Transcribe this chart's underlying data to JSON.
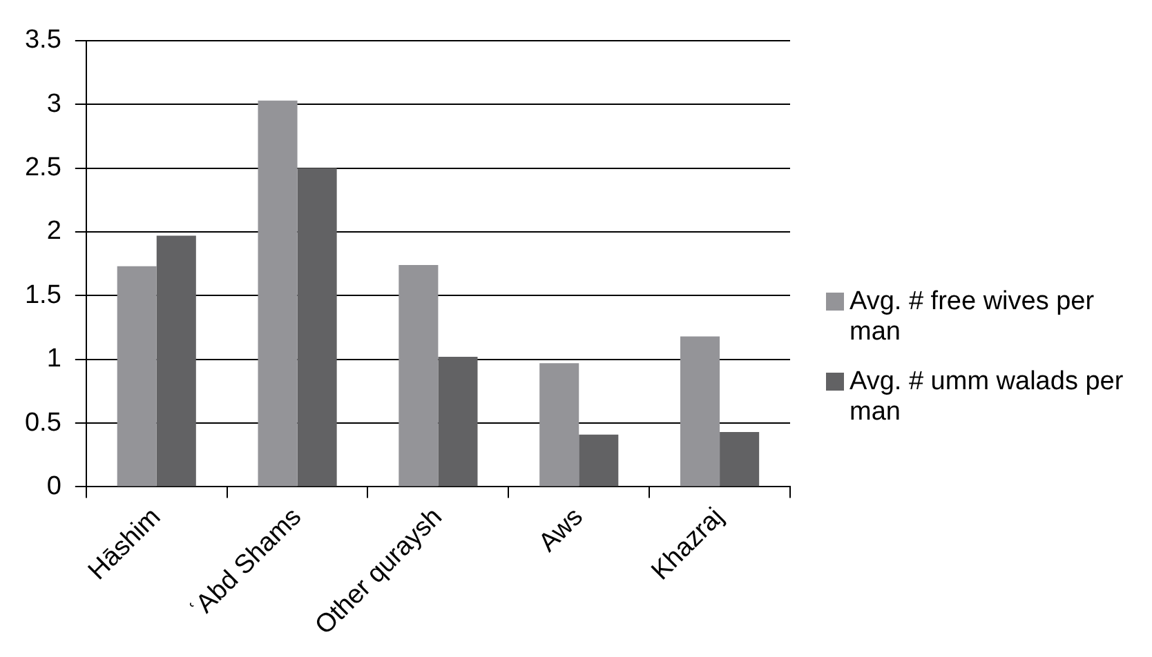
{
  "chart_data": {
    "type": "bar",
    "categories": [
      "Hāshim",
      "ʿAbd Shams",
      "Other quraysh",
      "Aws",
      "Khazraj"
    ],
    "series": [
      {
        "name": "Avg. # free wives per man",
        "color": "#949498",
        "values": [
          1.73,
          3.03,
          1.74,
          0.97,
          1.18
        ]
      },
      {
        "name": "Avg. # umm walads per man",
        "color": "#626264",
        "values": [
          1.97,
          2.5,
          1.02,
          0.41,
          0.43
        ]
      }
    ],
    "ylim": [
      0,
      3.5
    ],
    "yticks": [
      0,
      0.5,
      1,
      1.5,
      2,
      2.5,
      3,
      3.5
    ],
    "grid": "y",
    "legend": "right"
  }
}
